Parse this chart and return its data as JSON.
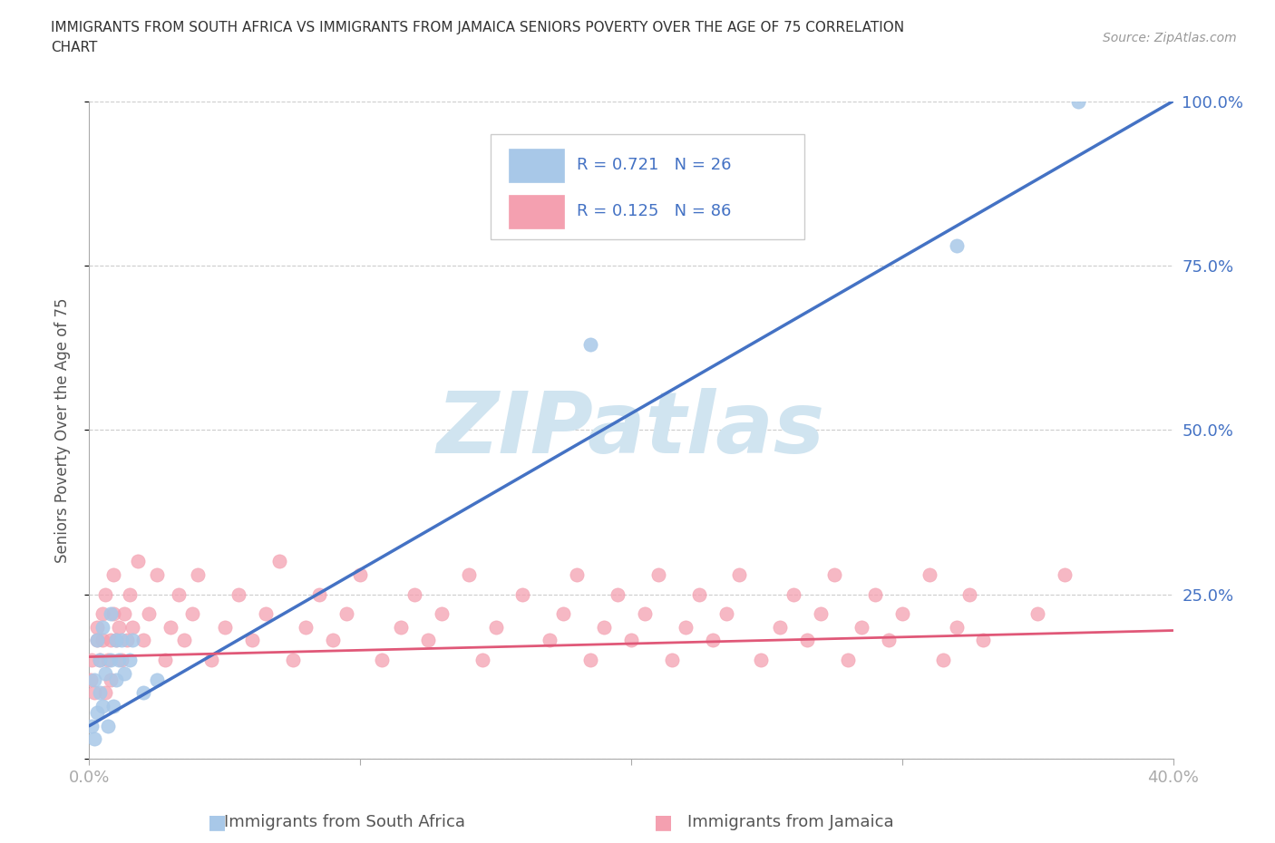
{
  "title_line1": "IMMIGRANTS FROM SOUTH AFRICA VS IMMIGRANTS FROM JAMAICA SENIORS POVERTY OVER THE AGE OF 75 CORRELATION",
  "title_line2": "CHART",
  "source": "Source: ZipAtlas.com",
  "ylabel": "Seniors Poverty Over the Age of 75",
  "xlabel_sa": "Immigrants from South Africa",
  "xlabel_ja": "Immigrants from Jamaica",
  "xlim": [
    0.0,
    0.4
  ],
  "ylim": [
    0.0,
    1.0
  ],
  "R_sa": 0.721,
  "N_sa": 26,
  "R_ja": 0.125,
  "N_ja": 86,
  "color_sa": "#a8c8e8",
  "color_sa_line": "#4472c4",
  "color_ja": "#f4a0b0",
  "color_ja_line": "#e05878",
  "watermark": "ZIPatlas",
  "watermark_color": "#d0e4f0",
  "background_color": "#ffffff",
  "grid_color": "#cccccc",
  "sa_x": [
    0.001,
    0.002,
    0.002,
    0.003,
    0.003,
    0.004,
    0.004,
    0.005,
    0.005,
    0.006,
    0.007,
    0.008,
    0.008,
    0.009,
    0.01,
    0.01,
    0.011,
    0.012,
    0.013,
    0.015,
    0.016,
    0.02,
    0.025,
    0.185,
    0.32,
    0.365
  ],
  "sa_y": [
    0.05,
    0.03,
    0.12,
    0.07,
    0.18,
    0.1,
    0.15,
    0.08,
    0.2,
    0.13,
    0.05,
    0.15,
    0.22,
    0.08,
    0.18,
    0.12,
    0.15,
    0.18,
    0.13,
    0.15,
    0.18,
    0.1,
    0.12,
    0.63,
    0.78,
    1.0
  ],
  "ja_x": [
    0.0005,
    0.001,
    0.002,
    0.003,
    0.003,
    0.004,
    0.005,
    0.005,
    0.006,
    0.006,
    0.007,
    0.008,
    0.008,
    0.009,
    0.009,
    0.01,
    0.011,
    0.012,
    0.013,
    0.014,
    0.015,
    0.016,
    0.018,
    0.02,
    0.022,
    0.025,
    0.028,
    0.03,
    0.033,
    0.035,
    0.038,
    0.04,
    0.045,
    0.05,
    0.055,
    0.06,
    0.065,
    0.07,
    0.075,
    0.08,
    0.085,
    0.09,
    0.095,
    0.1,
    0.108,
    0.115,
    0.12,
    0.125,
    0.13,
    0.14,
    0.145,
    0.15,
    0.16,
    0.17,
    0.175,
    0.18,
    0.185,
    0.19,
    0.195,
    0.2,
    0.205,
    0.21,
    0.215,
    0.22,
    0.225,
    0.23,
    0.235,
    0.24,
    0.248,
    0.255,
    0.26,
    0.265,
    0.27,
    0.275,
    0.28,
    0.285,
    0.29,
    0.295,
    0.3,
    0.31,
    0.315,
    0.32,
    0.325,
    0.33,
    0.35,
    0.36
  ],
  "ja_y": [
    0.12,
    0.15,
    0.1,
    0.18,
    0.2,
    0.15,
    0.22,
    0.18,
    0.1,
    0.25,
    0.15,
    0.18,
    0.12,
    0.22,
    0.28,
    0.18,
    0.2,
    0.15,
    0.22,
    0.18,
    0.25,
    0.2,
    0.3,
    0.18,
    0.22,
    0.28,
    0.15,
    0.2,
    0.25,
    0.18,
    0.22,
    0.28,
    0.15,
    0.2,
    0.25,
    0.18,
    0.22,
    0.3,
    0.15,
    0.2,
    0.25,
    0.18,
    0.22,
    0.28,
    0.15,
    0.2,
    0.25,
    0.18,
    0.22,
    0.28,
    0.15,
    0.2,
    0.25,
    0.18,
    0.22,
    0.28,
    0.15,
    0.2,
    0.25,
    0.18,
    0.22,
    0.28,
    0.15,
    0.2,
    0.25,
    0.18,
    0.22,
    0.28,
    0.15,
    0.2,
    0.25,
    0.18,
    0.22,
    0.28,
    0.15,
    0.2,
    0.25,
    0.18,
    0.22,
    0.28,
    0.15,
    0.2,
    0.25,
    0.18,
    0.22,
    0.28
  ],
  "sa_line_x0": 0.0,
  "sa_line_y0": 0.05,
  "sa_line_x1": 0.4,
  "sa_line_y1": 1.0,
  "ja_line_x0": 0.0,
  "ja_line_y0": 0.155,
  "ja_line_x1": 0.4,
  "ja_line_y1": 0.195
}
